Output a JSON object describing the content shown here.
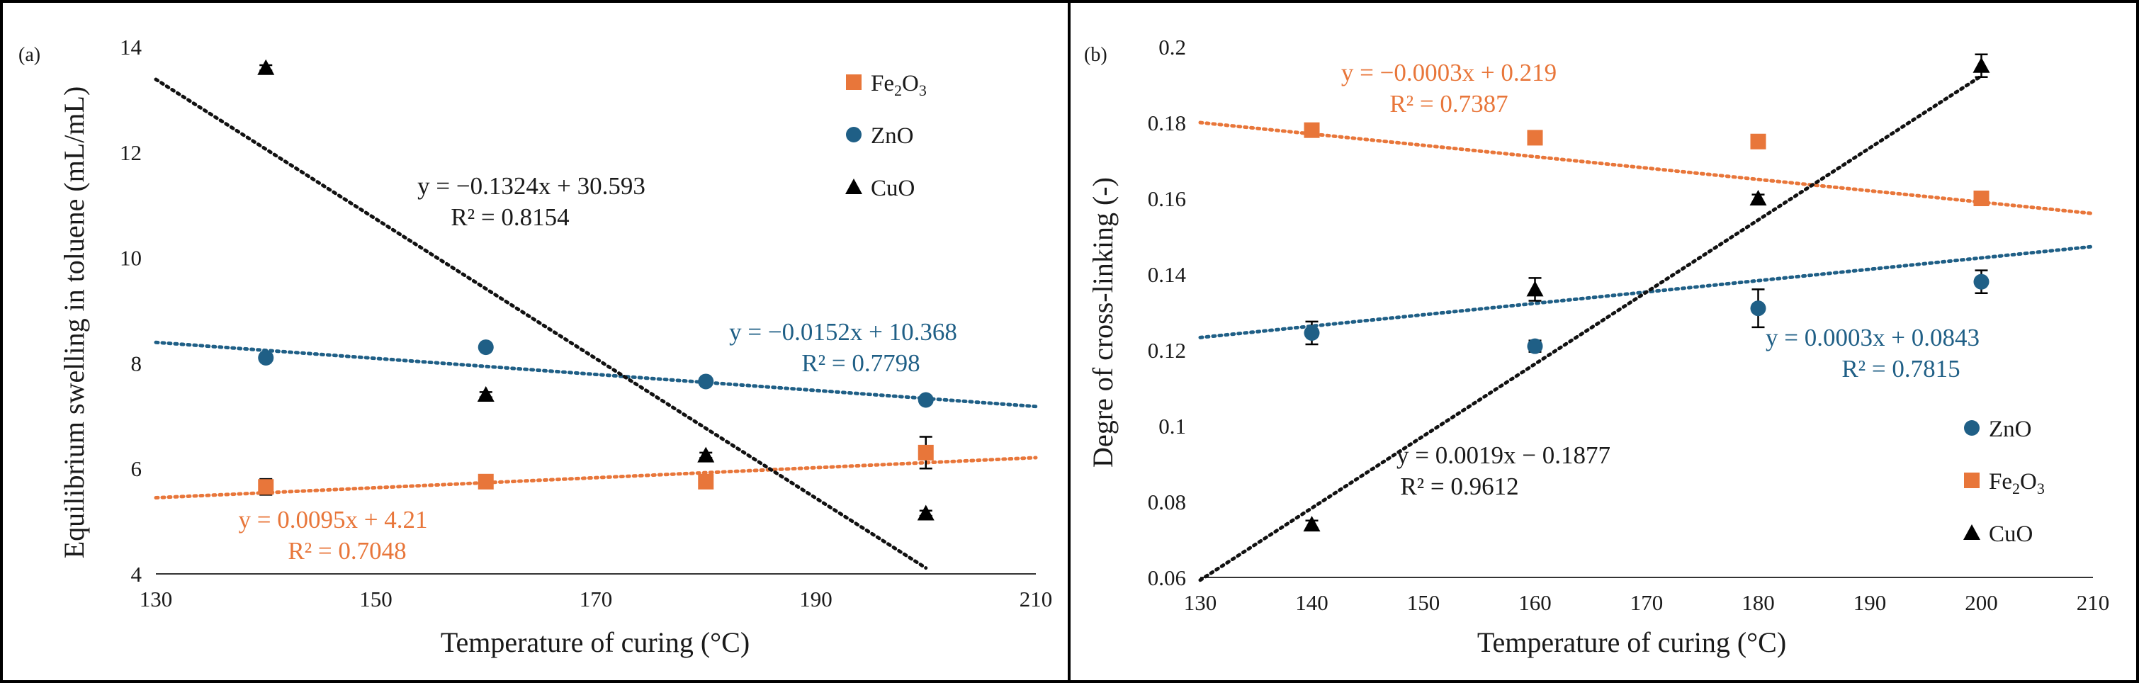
{
  "colors": {
    "fe2o3": "#e8763a",
    "zno": "#1f5f86",
    "cuo": "#000000",
    "black_fit": "#111111",
    "frame": "#000000"
  },
  "chart_data": [
    {
      "panel_label": "(a)",
      "type": "scatter",
      "xlabel": "Temperature of curing (°C)",
      "ylabel": "Equilibrium swelling in toluene (mL/mL)",
      "xlim": [
        130,
        210
      ],
      "ylim": [
        4,
        14
      ],
      "x_ticks": [
        "130",
        "150",
        "170",
        "190",
        "210"
      ],
      "y_ticks": [
        "4",
        "6",
        "8",
        "10",
        "12",
        "14"
      ],
      "legend_position": "top-right",
      "legend": [
        {
          "key": "fe2o3",
          "text": "Fe",
          "sub1": "2",
          "mid": "O",
          "sub2": "3"
        },
        {
          "key": "zno",
          "text": "ZnO"
        },
        {
          "key": "cuo",
          "text": "CuO"
        }
      ],
      "series": [
        {
          "key": "fe2o3",
          "name": "Fe2O3",
          "marker": "square",
          "x": [
            140,
            160,
            180,
            200
          ],
          "y": [
            5.65,
            5.75,
            5.75,
            6.3
          ],
          "err": [
            0.15,
            0.05,
            0.05,
            0.3
          ],
          "fit": {
            "slope": 0.0095,
            "intercept": 4.21,
            "x_range": [
              130,
              210
            ]
          },
          "equation": "y = 0.0095x + 4.21",
          "r2": "R² = 0.7048"
        },
        {
          "key": "zno",
          "name": "ZnO",
          "marker": "circle",
          "x": [
            140,
            160,
            180,
            200
          ],
          "y": [
            8.1,
            8.3,
            7.65,
            7.3
          ],
          "err": [
            0.05,
            0.05,
            0.05,
            0.05
          ],
          "fit": {
            "slope": -0.0152,
            "intercept": 10.368,
            "x_range": [
              130,
              210
            ]
          },
          "equation": "y = −0.0152x + 10.368",
          "r2": "R² = 0.7798"
        },
        {
          "key": "cuo",
          "name": "CuO",
          "marker": "triangle",
          "x": [
            140,
            160,
            180,
            200
          ],
          "y": [
            13.6,
            7.4,
            6.25,
            5.15
          ],
          "err": [
            0.05,
            0.05,
            0.05,
            0.05
          ],
          "fit": {
            "slope": -0.1324,
            "intercept": 30.593,
            "x_range": [
              130,
              200
            ]
          },
          "equation": "y = −0.1324x + 30.593",
          "r2": "R² = 0.8154"
        }
      ]
    },
    {
      "panel_label": "(b)",
      "type": "scatter",
      "xlabel": "Temperature of curing (°C)",
      "ylabel": "Degre of cross-linking (-)",
      "xlim": [
        130,
        210
      ],
      "ylim": [
        0.06,
        0.2
      ],
      "x_ticks": [
        "130",
        "140",
        "150",
        "160",
        "170",
        "180",
        "190",
        "200",
        "210"
      ],
      "y_ticks": [
        "0.06",
        "0.08",
        "0.1",
        "0.12",
        "0.14",
        "0.16",
        "0.18",
        "0.2"
      ],
      "legend_position": "bottom-right",
      "legend": [
        {
          "key": "zno",
          "text": "ZnO"
        },
        {
          "key": "fe2o3",
          "text": "Fe",
          "sub1": "2",
          "mid": "O",
          "sub2": "3"
        },
        {
          "key": "cuo",
          "text": "CuO"
        }
      ],
      "series": [
        {
          "key": "fe2o3",
          "name": "Fe2O3",
          "marker": "square",
          "x": [
            140,
            160,
            180,
            200
          ],
          "y": [
            0.178,
            0.176,
            0.175,
            0.16
          ],
          "err": [
            0.001,
            0.001,
            0.001,
            0.001
          ],
          "fit": {
            "slope": -0.0003,
            "intercept": 0.219,
            "x_range": [
              130,
              210
            ]
          },
          "equation": "y = −0.0003x + 0.219",
          "r2": "R² = 0.7387"
        },
        {
          "key": "zno",
          "name": "ZnO",
          "marker": "circle",
          "x": [
            140,
            160,
            180,
            200
          ],
          "y": [
            0.1245,
            0.121,
            0.131,
            0.138
          ],
          "err": [
            0.003,
            0.0015,
            0.005,
            0.003
          ],
          "fit": {
            "slope": 0.0003,
            "intercept": 0.0843,
            "x_range": [
              130,
              210
            ]
          },
          "equation": "y = 0.0003x + 0.0843",
          "r2": "R² = 0.7815"
        },
        {
          "key": "cuo",
          "name": "CuO",
          "marker": "triangle",
          "x": [
            140,
            160,
            180,
            200
          ],
          "y": [
            0.074,
            0.136,
            0.16,
            0.195
          ],
          "err": [
            0.001,
            0.003,
            0.001,
            0.003
          ],
          "fit": {
            "slope": 0.0019,
            "intercept": -0.1877,
            "x_range": [
              130,
              200
            ]
          },
          "equation": "y = 0.0019x − 0.1877",
          "r2": "R² = 0.9612"
        }
      ]
    }
  ]
}
